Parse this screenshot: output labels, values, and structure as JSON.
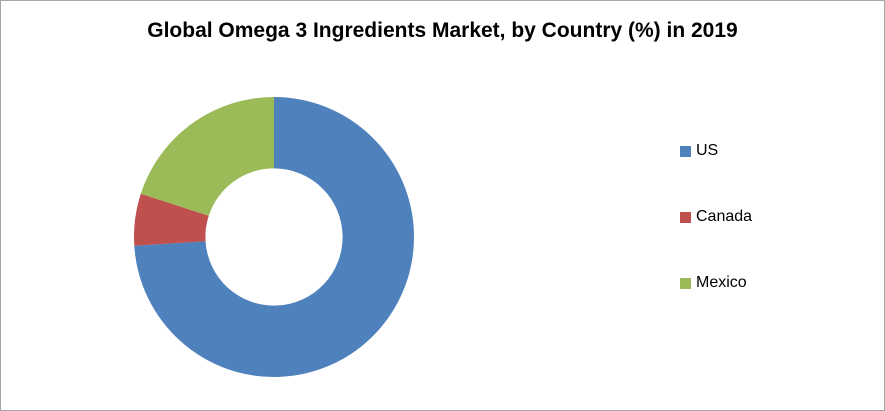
{
  "chart_data": {
    "type": "pie",
    "subtype": "donut",
    "title": "Global Omega 3 Ingredients  Market, by Country (%) in 2019",
    "categories": [
      "US",
      "Canada",
      "Mexico"
    ],
    "values": [
      74,
      6,
      20
    ],
    "unit": "%",
    "colors": [
      "#4F81BD",
      "#C0504D",
      "#9BBB59"
    ],
    "legend_position": "right",
    "inner_radius_ratio": 0.49,
    "start_angle_deg": 0,
    "direction": "clockwise"
  }
}
